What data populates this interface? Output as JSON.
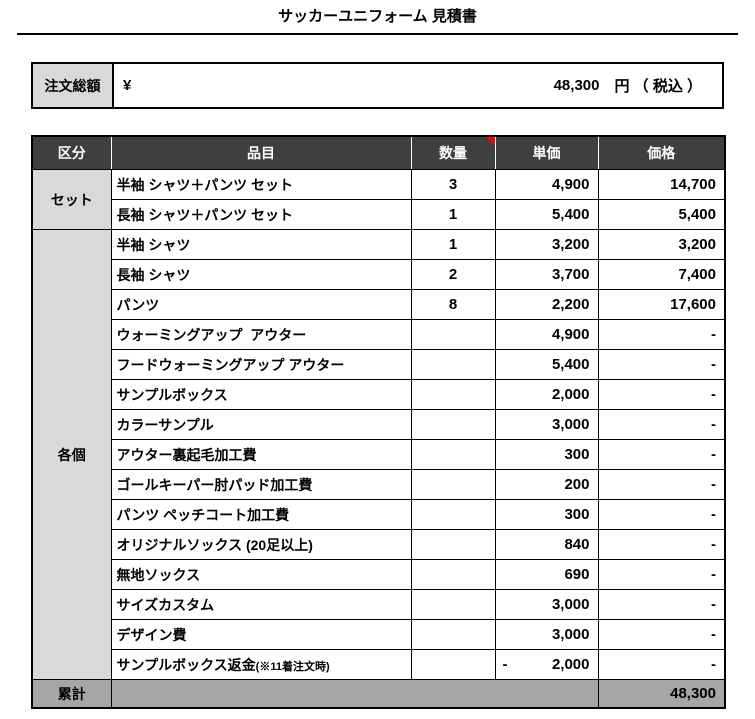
{
  "page": {
    "title": "サッカーユニフォーム 見積書"
  },
  "summary": {
    "label": "注文総額",
    "currency_symbol": "¥",
    "amount": "48,300",
    "unit_suffix": "円 （ 税込 ）"
  },
  "table": {
    "headers": [
      "区分",
      "品目",
      "数量",
      "単価",
      "価格"
    ],
    "comment_marker": {
      "header": "数量",
      "color": "#ff0000"
    },
    "groups": [
      {
        "label": "セット",
        "rows": [
          {
            "item": "半袖 シャツ＋パンツ セット",
            "qty": "3",
            "unit": "4,900",
            "price": "14,700"
          },
          {
            "item": "長袖 シャツ＋パンツ セット",
            "qty": "1",
            "unit": "5,400",
            "price": "5,400"
          }
        ]
      },
      {
        "label": "各個",
        "rows": [
          {
            "item": "半袖 シャツ",
            "qty": "1",
            "unit": "3,200",
            "price": "3,200"
          },
          {
            "item": "長袖 シャツ",
            "qty": "2",
            "unit": "3,700",
            "price": "7,400"
          },
          {
            "item": "パンツ",
            "qty": "8",
            "unit": "2,200",
            "price": "17,600"
          },
          {
            "item": "ウォーミングアップ  アウター",
            "qty": "",
            "unit": "4,900",
            "price": "-"
          },
          {
            "item": "フードウォーミングアップ アウター",
            "qty": "",
            "unit": "5,400",
            "price": "-"
          },
          {
            "item": "サンプルボックス",
            "qty": "",
            "unit": "2,000",
            "price": "-"
          },
          {
            "item": "カラーサンプル",
            "qty": "",
            "unit": "3,000",
            "price": "-"
          },
          {
            "item": "アウター裏起毛加工費",
            "qty": "",
            "unit": "300",
            "price": "-"
          },
          {
            "item": "ゴールキーパー肘パッド加工費",
            "qty": "",
            "unit": "200",
            "price": "-"
          },
          {
            "item": "パンツ ペッチコート加工費",
            "qty": "",
            "unit": "300",
            "price": "-"
          },
          {
            "item": "オリジナルソックス (20足以上)",
            "qty": "",
            "unit": "840",
            "price": "-"
          },
          {
            "item": "無地ソックス",
            "qty": "",
            "unit": "690",
            "price": "-"
          },
          {
            "item": "サイズカスタム",
            "qty": "",
            "unit": "3,000",
            "price": "-"
          },
          {
            "item": "デザイン費",
            "qty": "",
            "unit": "3,000",
            "price": "-"
          },
          {
            "item": "サンプルボックス返金",
            "item_small": "(※11着注文時)",
            "qty": "",
            "unit": "2,000",
            "unit_negative": true,
            "unit_minus": "-",
            "price": "-"
          }
        ]
      }
    ],
    "total": {
      "label": "累計",
      "value": "48,300"
    }
  },
  "colors": {
    "header_bg": "#3f3f3f",
    "group_bg": "#d9d9d9",
    "total_bg": "#a6a6a6",
    "border": "#000000",
    "comment_red": "#ff0000"
  }
}
